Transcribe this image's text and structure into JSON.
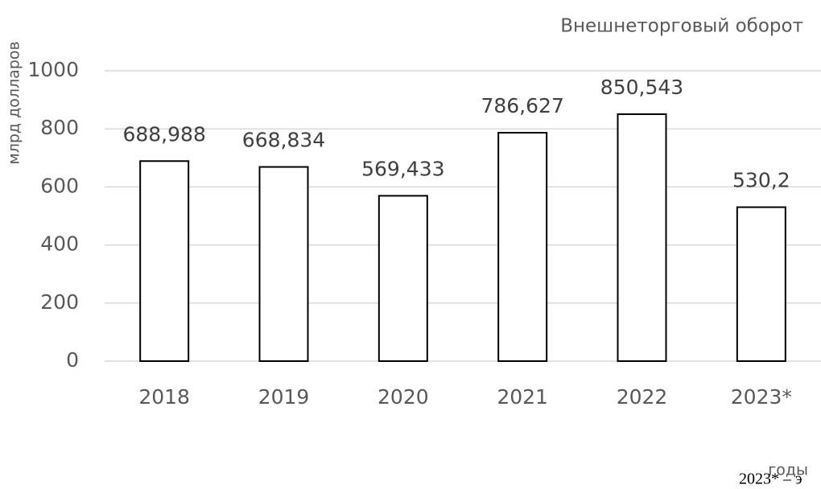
{
  "chart_data": {
    "type": "bar",
    "title": "Внешнеторговый оборот",
    "y_label": "млрд долларов",
    "x_label": "годы",
    "footnote": "2023* – э",
    "categories": [
      "2018",
      "2019",
      "2020",
      "2021",
      "2022",
      "2023*"
    ],
    "values": [
      688.988,
      668.834,
      569.433,
      786.627,
      850.543,
      530.2
    ],
    "value_labels": [
      "688,988",
      "668,834",
      "569,433",
      "786,627",
      "850,543",
      "530,2"
    ],
    "color": "#ffffff",
    "edge_color": "#000000",
    "ylim": [
      0,
      1000
    ],
    "yticks": [
      0,
      200,
      400,
      600,
      800,
      1000
    ],
    "grid": true
  }
}
